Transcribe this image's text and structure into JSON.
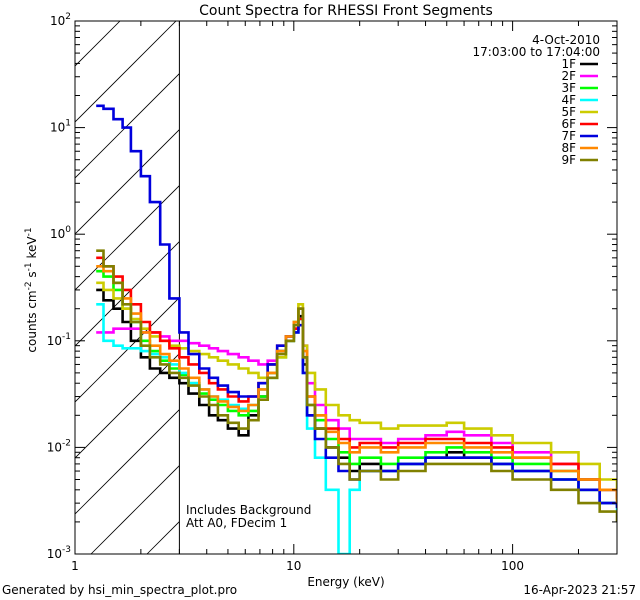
{
  "chart_data": {
    "type": "line",
    "title": "Count Spectra for RHESSI Front Segments",
    "xlabel": "Energy (keV)",
    "ylabel_parts": [
      "counts cm",
      "-2",
      " s",
      "-1",
      " keV",
      "-1"
    ],
    "x_scale": "log",
    "y_scale": "log",
    "xlim": [
      1.0,
      300
    ],
    "ylim": [
      0.001,
      100
    ],
    "x_ticks": [
      {
        "v": 1,
        "label": "1"
      },
      {
        "v": 10,
        "label": "10"
      },
      {
        "v": 100,
        "label": "100"
      }
    ],
    "y_ticks": [
      {
        "v": 0.001,
        "base": "10",
        "exp": "-3"
      },
      {
        "v": 0.01,
        "base": "10",
        "exp": "-2"
      },
      {
        "v": 0.1,
        "base": "10",
        "exp": "-1"
      },
      {
        "v": 1,
        "base": "10",
        "exp": "0"
      },
      {
        "v": 10,
        "base": "10",
        "exp": "1"
      },
      {
        "v": 100,
        "base": "10",
        "exp": "2"
      }
    ],
    "hatched_region_kev": [
      1.0,
      3.0
    ],
    "date": "4-Oct-2010",
    "time_range": "17:03:00 to 17:04:00",
    "annotation_lines": [
      "Includes Background",
      "Att A0, FDecim 1"
    ],
    "footer_left": "Generated by hsi_min_spectra_plot.pro",
    "footer_right": "16-Apr-2023 21:57",
    "series": [
      {
        "name": "1F",
        "color": "#000000",
        "x": [
          1.25,
          1.35,
          1.5,
          1.65,
          1.8,
          2.0,
          2.2,
          2.45,
          2.7,
          3.0,
          3.3,
          3.7,
          4.1,
          4.5,
          5.0,
          5.6,
          6.2,
          6.9,
          7.6,
          8.4,
          9.2,
          10.0,
          10.5,
          11.0,
          11.5,
          12.5,
          14,
          16,
          18,
          20,
          25,
          30,
          40,
          50,
          60,
          80,
          100,
          150,
          200,
          250,
          300
        ],
        "y": [
          0.3,
          0.24,
          0.2,
          0.15,
          0.1,
          0.07,
          0.055,
          0.05,
          0.045,
          0.04,
          0.032,
          0.025,
          0.02,
          0.018,
          0.015,
          0.013,
          0.02,
          0.03,
          0.05,
          0.08,
          0.1,
          0.13,
          0.17,
          0.06,
          0.02,
          0.015,
          0.01,
          0.008,
          0.006,
          0.007,
          0.006,
          0.007,
          0.008,
          0.009,
          0.008,
          0.007,
          0.006,
          0.005,
          0.004,
          0.003,
          0.0028
        ]
      },
      {
        "name": "2F",
        "color": "#ff00ff",
        "x": [
          1.25,
          1.35,
          1.5,
          1.65,
          1.8,
          2.0,
          2.2,
          2.45,
          2.7,
          3.0,
          3.3,
          3.7,
          4.1,
          4.5,
          5.0,
          5.6,
          6.2,
          6.9,
          7.6,
          8.4,
          9.2,
          10.0,
          10.5,
          11.0,
          11.5,
          12.5,
          14,
          16,
          18,
          20,
          25,
          30,
          40,
          50,
          60,
          80,
          100,
          150,
          200,
          250,
          300
        ],
        "y": [
          0.12,
          0.12,
          0.13,
          0.13,
          0.13,
          0.12,
          0.12,
          0.11,
          0.1,
          0.1,
          0.095,
          0.09,
          0.085,
          0.08,
          0.075,
          0.07,
          0.065,
          0.06,
          0.065,
          0.08,
          0.1,
          0.14,
          0.2,
          0.09,
          0.04,
          0.025,
          0.018,
          0.015,
          0.012,
          0.012,
          0.011,
          0.012,
          0.013,
          0.014,
          0.013,
          0.011,
          0.009,
          0.007,
          0.005,
          0.004,
          0.0035
        ]
      },
      {
        "name": "3F",
        "color": "#00ff00",
        "x": [
          1.25,
          1.35,
          1.5,
          1.65,
          1.8,
          2.0,
          2.2,
          2.45,
          2.7,
          3.0,
          3.3,
          3.7,
          4.1,
          4.5,
          5.0,
          5.6,
          6.2,
          6.9,
          7.6,
          8.4,
          9.2,
          10.0,
          10.5,
          11.0,
          11.5,
          12.5,
          14,
          16,
          18,
          20,
          25,
          30,
          40,
          50,
          60,
          80,
          100,
          150,
          200,
          250,
          300
        ],
        "y": [
          0.45,
          0.4,
          0.3,
          0.2,
          0.15,
          0.1,
          0.08,
          0.065,
          0.055,
          0.048,
          0.04,
          0.032,
          0.028,
          0.025,
          0.022,
          0.02,
          0.022,
          0.03,
          0.045,
          0.07,
          0.1,
          0.15,
          0.2,
          0.07,
          0.025,
          0.018,
          0.012,
          0.009,
          0.007,
          0.008,
          0.007,
          0.008,
          0.009,
          0.01,
          0.009,
          0.008,
          0.007,
          0.006,
          0.005,
          0.004,
          0.0032
        ]
      },
      {
        "name": "4F",
        "color": "#00ffff",
        "x": [
          1.25,
          1.35,
          1.5,
          1.65,
          1.8,
          2.0,
          2.2,
          2.45,
          2.7,
          3.0,
          3.3,
          3.7,
          4.1,
          4.5,
          5.0,
          5.6,
          6.2,
          6.9,
          7.6,
          8.4,
          9.2,
          10.0,
          10.5,
          11.0,
          11.5,
          12.5,
          14,
          16,
          18,
          20,
          25,
          30,
          40,
          50,
          60,
          80,
          100,
          150,
          200,
          250,
          300
        ],
        "y": [
          0.22,
          0.1,
          0.09,
          0.085,
          0.085,
          0.08,
          0.075,
          0.07,
          0.06,
          0.05,
          0.04,
          0.035,
          0.03,
          0.028,
          0.025,
          0.023,
          0.025,
          0.035,
          0.05,
          0.08,
          0.1,
          0.12,
          0.16,
          0.05,
          0.015,
          0.008,
          0.004,
          0.001,
          0.004,
          0.006,
          0.006,
          0.007,
          0.008,
          0.008,
          0.008,
          0.007,
          0.006,
          0.005,
          0.004,
          0.003,
          0.0025
        ]
      },
      {
        "name": "5F",
        "color": "#cccc00",
        "x": [
          1.25,
          1.35,
          1.5,
          1.65,
          1.8,
          2.0,
          2.2,
          2.45,
          2.7,
          3.0,
          3.3,
          3.7,
          4.1,
          4.5,
          5.0,
          5.6,
          6.2,
          6.9,
          7.6,
          8.4,
          9.2,
          10.0,
          10.5,
          11.0,
          11.5,
          12.5,
          14,
          16,
          18,
          20,
          25,
          30,
          40,
          50,
          60,
          80,
          100,
          150,
          200,
          250,
          300
        ],
        "y": [
          0.35,
          0.3,
          0.25,
          0.2,
          0.16,
          0.13,
          0.11,
          0.1,
          0.09,
          0.085,
          0.08,
          0.075,
          0.07,
          0.065,
          0.06,
          0.055,
          0.05,
          0.045,
          0.05,
          0.07,
          0.1,
          0.14,
          0.22,
          0.09,
          0.05,
          0.035,
          0.025,
          0.02,
          0.018,
          0.017,
          0.015,
          0.016,
          0.016,
          0.017,
          0.015,
          0.013,
          0.011,
          0.009,
          0.007,
          0.005,
          0.004
        ]
      },
      {
        "name": "6F",
        "color": "#ff0000",
        "x": [
          1.25,
          1.35,
          1.5,
          1.65,
          1.8,
          2.0,
          2.2,
          2.45,
          2.7,
          3.0,
          3.3,
          3.7,
          4.1,
          4.5,
          5.0,
          5.6,
          6.2,
          6.9,
          7.6,
          8.4,
          9.2,
          10.0,
          10.5,
          11.0,
          11.5,
          12.5,
          14,
          16,
          18,
          20,
          25,
          30,
          40,
          50,
          60,
          80,
          100,
          150,
          200,
          250,
          300
        ],
        "y": [
          0.6,
          0.5,
          0.4,
          0.3,
          0.22,
          0.15,
          0.12,
          0.1,
          0.085,
          0.07,
          0.06,
          0.05,
          0.04,
          0.035,
          0.03,
          0.027,
          0.03,
          0.04,
          0.06,
          0.09,
          0.11,
          0.13,
          0.16,
          0.07,
          0.03,
          0.02,
          0.015,
          0.012,
          0.01,
          0.011,
          0.01,
          0.011,
          0.012,
          0.012,
          0.011,
          0.01,
          0.008,
          0.007,
          0.005,
          0.004,
          0.0033
        ]
      },
      {
        "name": "7F",
        "color": "#0000dd",
        "x": [
          1.25,
          1.35,
          1.5,
          1.65,
          1.8,
          2.0,
          2.2,
          2.45,
          2.7,
          3.0,
          3.3,
          3.7,
          4.1,
          4.5,
          5.0,
          5.6,
          6.2,
          6.9,
          7.6,
          8.4,
          9.2,
          10.0,
          10.5,
          11.0,
          11.5,
          12.5,
          14,
          16,
          18,
          20,
          25,
          30,
          40,
          50,
          60,
          80,
          100,
          150,
          200,
          250,
          300
        ],
        "y": [
          16,
          15,
          12,
          10,
          6,
          3.5,
          2,
          0.8,
          0.25,
          0.12,
          0.075,
          0.055,
          0.045,
          0.038,
          0.033,
          0.03,
          0.03,
          0.04,
          0.06,
          0.09,
          0.11,
          0.12,
          0.14,
          0.05,
          0.02,
          0.012,
          0.008,
          0.006,
          0.005,
          0.006,
          0.006,
          0.007,
          0.008,
          0.008,
          0.008,
          0.007,
          0.006,
          0.005,
          0.004,
          0.003,
          0.0027
        ]
      },
      {
        "name": "8F",
        "color": "#ff8800",
        "x": [
          1.25,
          1.35,
          1.5,
          1.65,
          1.8,
          2.0,
          2.2,
          2.45,
          2.7,
          3.0,
          3.3,
          3.7,
          4.1,
          4.5,
          5.0,
          5.6,
          6.2,
          6.9,
          7.6,
          8.4,
          9.2,
          10.0,
          10.5,
          11.0,
          11.5,
          12.5,
          14,
          16,
          18,
          20,
          25,
          30,
          40,
          50,
          60,
          80,
          100,
          150,
          200,
          250,
          300
        ],
        "y": [
          0.5,
          0.45,
          0.35,
          0.25,
          0.18,
          0.12,
          0.09,
          0.075,
          0.065,
          0.055,
          0.045,
          0.035,
          0.03,
          0.027,
          0.024,
          0.022,
          0.025,
          0.035,
          0.05,
          0.08,
          0.11,
          0.15,
          0.2,
          0.08,
          0.03,
          0.02,
          0.014,
          0.011,
          0.009,
          0.01,
          0.009,
          0.01,
          0.011,
          0.011,
          0.01,
          0.009,
          0.008,
          0.006,
          0.005,
          0.004,
          0.003
        ]
      },
      {
        "name": "9F",
        "color": "#808000",
        "x": [
          1.25,
          1.35,
          1.5,
          1.65,
          1.8,
          2.0,
          2.2,
          2.45,
          2.7,
          3.0,
          3.3,
          3.7,
          4.1,
          4.5,
          5.0,
          5.6,
          6.2,
          6.9,
          7.6,
          8.4,
          9.2,
          10.0,
          10.5,
          11.0,
          11.5,
          12.5,
          14,
          16,
          18,
          20,
          25,
          30,
          40,
          50,
          60,
          80,
          100,
          150,
          200,
          250,
          300
        ],
        "y": [
          0.7,
          0.5,
          0.35,
          0.22,
          0.15,
          0.09,
          0.07,
          0.06,
          0.05,
          0.045,
          0.038,
          0.03,
          0.025,
          0.02,
          0.017,
          0.015,
          0.018,
          0.028,
          0.045,
          0.075,
          0.1,
          0.14,
          0.2,
          0.07,
          0.025,
          0.015,
          0.01,
          0.007,
          0.005,
          0.006,
          0.005,
          0.006,
          0.007,
          0.007,
          0.007,
          0.006,
          0.005,
          0.004,
          0.003,
          0.0025,
          0.002
        ]
      }
    ]
  }
}
